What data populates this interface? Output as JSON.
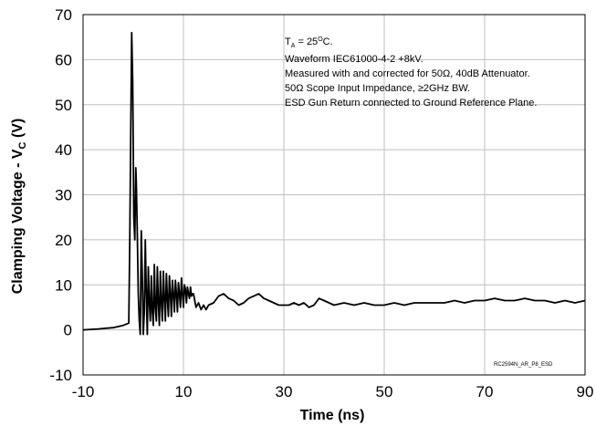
{
  "chart_data": {
    "type": "line",
    "xlabel": "Time (ns)",
    "ylabel": "Clamping Voltage  - V",
    "ylabel_sub": "C",
    "ylabel_unit": " (V)",
    "xlim": [
      -10,
      90
    ],
    "ylim": [
      -10,
      70
    ],
    "xticks": [
      -10,
      10,
      30,
      50,
      70,
      90
    ],
    "yticks": [
      -10,
      0,
      10,
      20,
      30,
      40,
      50,
      60,
      70
    ],
    "grid": true,
    "series": [
      {
        "color": "#000000",
        "x": [
          -10,
          -7,
          -4,
          -2,
          -0.9,
          -0.7,
          -0.5,
          -0.3,
          -0.1,
          0.1,
          0.3,
          0.5,
          0.6,
          0.8,
          1.0,
          1.2,
          1.4,
          1.6,
          1.8,
          2.0,
          2.2,
          2.4,
          2.6,
          2.8,
          3.0,
          3.2,
          3.4,
          3.6,
          3.8,
          4.0,
          4.2,
          4.4,
          4.6,
          4.8,
          5.0,
          5.2,
          5.4,
          5.6,
          5.8,
          6.0,
          6.2,
          6.4,
          6.6,
          6.8,
          7.0,
          7.2,
          7.4,
          7.6,
          7.8,
          8.0,
          8.2,
          8.4,
          8.6,
          8.8,
          9.0,
          9.2,
          9.4,
          9.6,
          9.8,
          10.0,
          10.2,
          10.4,
          10.6,
          10.8,
          11.0,
          11.2,
          11.4,
          11.6,
          11.8,
          12.0,
          12.5,
          13,
          13.5,
          14,
          14.5,
          15,
          16,
          17,
          18,
          19,
          20,
          21,
          22,
          23,
          24,
          25,
          26,
          27,
          28,
          29,
          30,
          31,
          32,
          33,
          34,
          35,
          36,
          37,
          38,
          39,
          40,
          42,
          44,
          46,
          48,
          50,
          52,
          54,
          56,
          58,
          60,
          62,
          64,
          66,
          68,
          70,
          72,
          74,
          76,
          78,
          80,
          82,
          84,
          86,
          88,
          90
        ],
        "y": [
          0,
          0.2,
          0.5,
          1,
          1.5,
          20,
          45,
          66,
          55,
          25,
          20,
          36,
          33,
          22,
          8,
          2,
          -1,
          22,
          12,
          -1,
          4,
          20,
          8,
          -1,
          14,
          6,
          2,
          12,
          4,
          1,
          14.5,
          5,
          2,
          14,
          6,
          1,
          13,
          6,
          2,
          13,
          7,
          2,
          12.5,
          7,
          3,
          12,
          8,
          3,
          11,
          8,
          4,
          11,
          8,
          4,
          10.5,
          8,
          5,
          11.5,
          8,
          5,
          10,
          9,
          6,
          9.5,
          8,
          7,
          9.5,
          7.5,
          8,
          8,
          5,
          6,
          4.5,
          5.5,
          4.5,
          5.5,
          6,
          7.5,
          8,
          7,
          6.5,
          5.5,
          6,
          7,
          7.5,
          8,
          7,
          6.5,
          6,
          5.5,
          5.5,
          5.5,
          6,
          5.5,
          6,
          5,
          5.5,
          7,
          6.5,
          6,
          5.5,
          6,
          5.5,
          6,
          5.5,
          5.5,
          6,
          5.5,
          6,
          6,
          6,
          6,
          6.5,
          6,
          6.5,
          6.5,
          7,
          6.5,
          6.5,
          7,
          6.5,
          6.5,
          6,
          6.5,
          6,
          6.5
        ]
      }
    ],
    "annotations": {
      "line1_pre": "T",
      "line1_sub": "A",
      "line1_mid": " = 25",
      "line1_sup": "O",
      "line1_post": "C.",
      "line2": "Waveform IEC61000-4-2 +8kV.",
      "line3": "Measured with and corrected for 50Ω, 40dB Attenuator.",
      "line4": "50Ω Scope Input Impedance, ≥2GHz BW.",
      "line5": "ESD Gun Return connected to Ground Reference Plane.",
      "figure_id": "RC2594N_AR_P8_ESD"
    }
  }
}
